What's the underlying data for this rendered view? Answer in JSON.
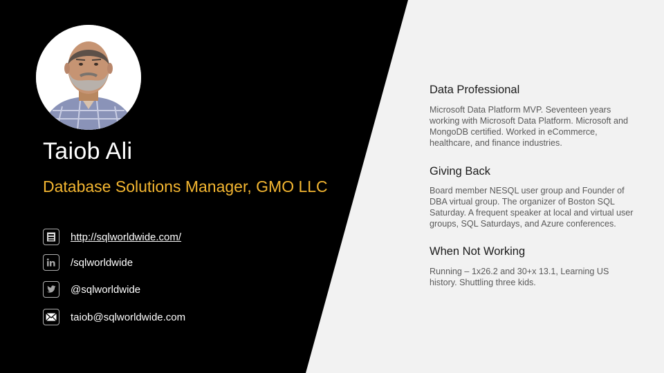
{
  "profile": {
    "name": "Taiob Ali",
    "title": "Database Solutions Manager, GMO LLC"
  },
  "contacts": [
    {
      "icon": "web-page-icon",
      "text": "http://sqlworldwide.com/"
    },
    {
      "icon": "linkedin-icon",
      "text": "/sqlworldwide"
    },
    {
      "icon": "twitter-icon",
      "text": "@sqlworldwide"
    },
    {
      "icon": "email-icon",
      "text": "taiob@sqlworldwide.com"
    }
  ],
  "sections": [
    {
      "heading": "Data Professional",
      "body": "Microsoft Data Platform MVP. Seventeen years working with Microsoft Data Platform. Microsoft and MongoDB certified. Worked in eCommerce, healthcare, and finance industries."
    },
    {
      "heading": "Giving Back",
      "body": "Board member NESQL user group and Founder of DBA virtual group. The organizer of Boston SQL Saturday. A frequent speaker at local and virtual user groups, SQL Saturdays, and Azure conferences."
    },
    {
      "heading": "When Not Working",
      "body": "Running – 1x26.2 and 30+x 13.1, Learning US history. Shuttling three kids."
    }
  ],
  "colors": {
    "background_dark": "#000000",
    "background_light": "#f2f2f2",
    "accent": "#f5b731"
  }
}
